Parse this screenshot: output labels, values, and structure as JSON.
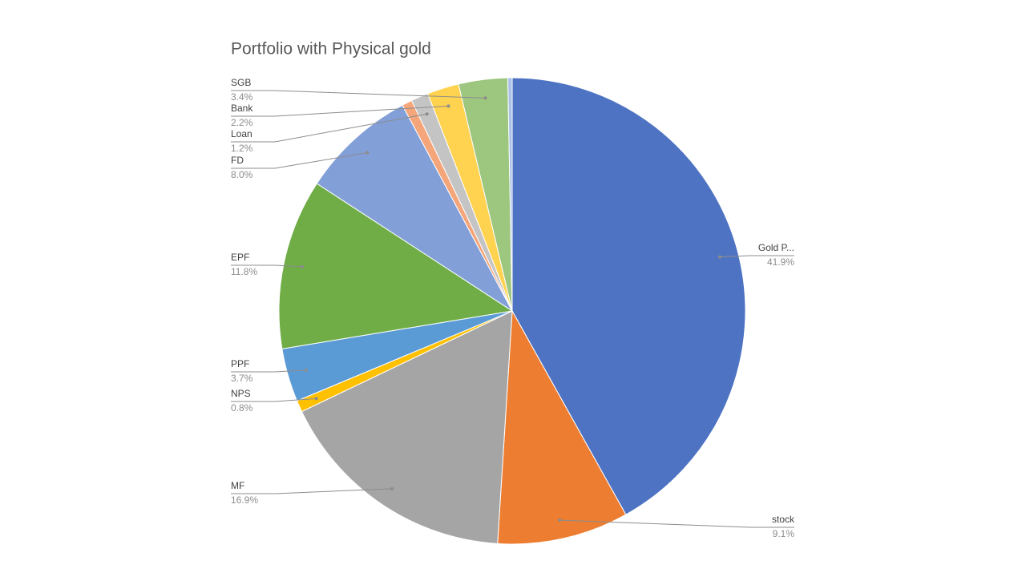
{
  "chart_data": {
    "type": "pie",
    "title": "Portfolio with Physical gold",
    "categories": [
      "Gold P...",
      "stock",
      "MF",
      "NPS",
      "PPF",
      "EPF",
      "FD",
      null,
      "Loan",
      "Bank",
      "SGB",
      null
    ],
    "values": [
      41.9,
      9.1,
      16.9,
      0.8,
      3.7,
      11.8,
      8.0,
      0.7,
      1.2,
      2.2,
      3.4,
      0.3
    ],
    "value_labels": [
      "41.9%",
      "9.1%",
      "16.9%",
      "0.8%",
      "3.7%",
      "11.8%",
      "8.0%",
      null,
      "1.2%",
      "2.2%",
      "3.4%",
      null
    ],
    "colors": [
      "#4e73c3",
      "#ed7d31",
      "#a5a5a5",
      "#ffc000",
      "#5b9bd5",
      "#70ad47",
      "#829fd8",
      "#f4a57a",
      "#c4c4c4",
      "#ffd34f",
      "#9dc67f",
      "#a9c1e6"
    ]
  }
}
